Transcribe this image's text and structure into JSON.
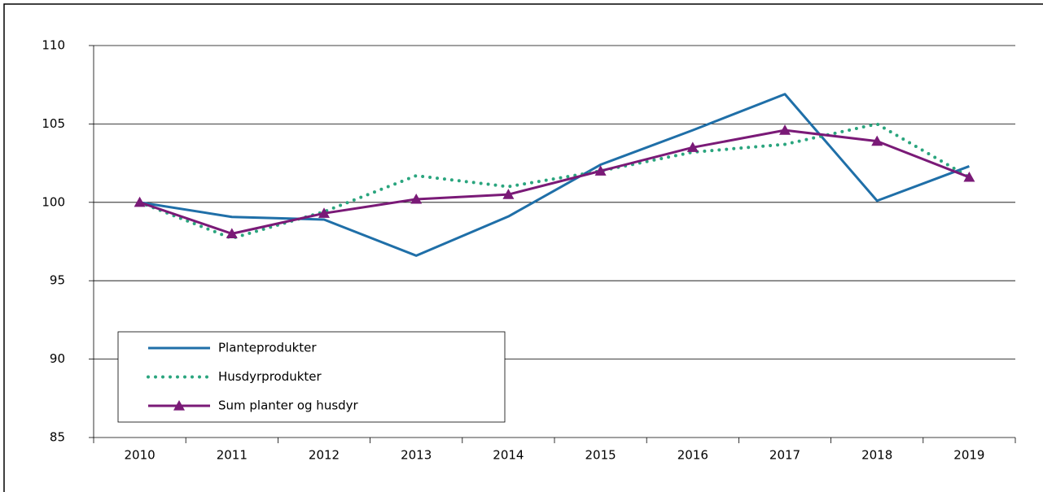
{
  "chart_data": {
    "type": "line",
    "categories": [
      "2010",
      "2011",
      "2012",
      "2013",
      "2014",
      "2015",
      "2016",
      "2017",
      "2018",
      "2019"
    ],
    "series": [
      {
        "name": "Planteprodukter",
        "color": "#1f6fa8",
        "style": "solid",
        "marker": "none",
        "values": [
          100,
          99.07,
          98.9,
          96.6,
          99.1,
          102.4,
          104.6,
          106.9,
          100.1,
          102.3
        ]
      },
      {
        "name": "Husdyrprodukter",
        "color": "#2aa57e",
        "style": "dotted",
        "marker": "none",
        "values": [
          100,
          97.7,
          99.4,
          101.7,
          101.0,
          102.0,
          103.2,
          103.7,
          105.0,
          101.6
        ]
      },
      {
        "name": "Sum planter og husdyr",
        "color": "#7a1a77",
        "style": "solid",
        "marker": "triangle",
        "values": [
          100,
          98.0,
          99.3,
          100.2,
          100.5,
          102.0,
          103.5,
          104.6,
          103.9,
          101.6
        ]
      }
    ],
    "ylim": [
      85,
      110
    ],
    "yticks": [
      85,
      90,
      95,
      100,
      105,
      110
    ],
    "grid": true,
    "legend": "lower left"
  }
}
